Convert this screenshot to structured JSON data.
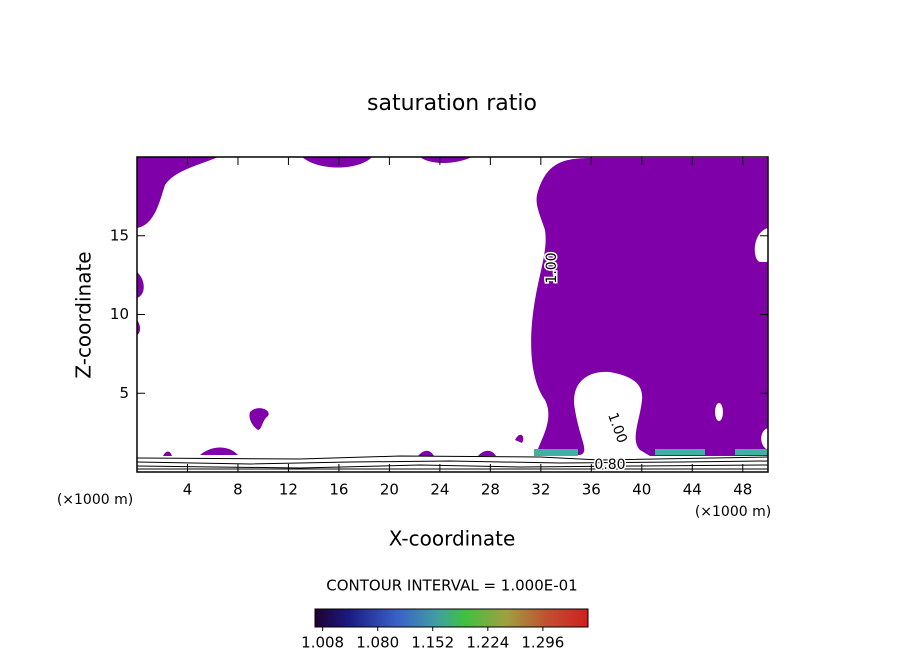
{
  "chart_data": {
    "type": "contour",
    "title": "saturation ratio",
    "x_label": "X-coordinate",
    "y_label": "Z-coordinate",
    "x_unit": "(×1000 m)",
    "y_unit": "(×1000 m)",
    "xlim": [
      0,
      50
    ],
    "ylim": [
      0,
      20
    ],
    "xticks": [
      4,
      8,
      12,
      16,
      20,
      24,
      28,
      32,
      36,
      40,
      44,
      48
    ],
    "yticks": [
      5,
      10,
      15
    ],
    "fill_color": "#7f00a8",
    "contour_labels": [
      {
        "value": 1,
        "label": "1.00"
      },
      {
        "value": 1,
        "label": "1.00"
      },
      {
        "value": 0.8,
        "label": "0.80"
      }
    ],
    "contour_interval_text": "CONTOUR INTERVAL = 1.000E-01",
    "colorbar": {
      "lim": [
        0.998,
        1.355
      ],
      "ticks": [
        1.008,
        {
          "value": 1.08,
          "label": "1.080"
        },
        1.152,
        1.224,
        1.296
      ]
    }
  }
}
